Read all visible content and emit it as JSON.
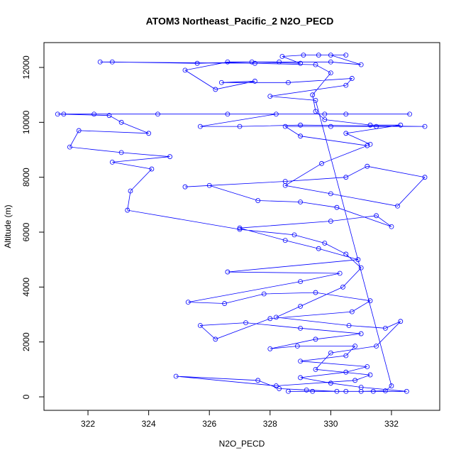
{
  "chart_data": {
    "type": "line",
    "title": "ATOM3 Northeast_Pacific_2 N2O_PECD",
    "xlabel": "N2O_PECD",
    "ylabel": "Altitude (m)",
    "color": "#0000ff",
    "xlim": [
      320.55,
      333.59
    ],
    "ylim": [
      -491,
      12905
    ],
    "xticks": [
      322,
      324,
      326,
      328,
      330,
      332
    ],
    "yticks": [
      0,
      2000,
      4000,
      6000,
      8000,
      10000,
      12000
    ],
    "x": [
      328.6,
      329.4,
      330.5,
      331.4,
      332.5,
      331,
      330,
      329,
      330.5,
      331.2,
      329,
      330.5,
      330.8,
      328.9,
      328,
      329.5,
      331,
      329,
      327.2,
      325.7,
      326.2,
      328,
      330.7,
      331.3,
      329.5,
      327.8,
      326.5,
      325.3,
      329,
      330.3,
      326.6,
      330.9,
      329.6,
      328.5,
      327,
      330,
      331.5,
      332,
      330.2,
      329,
      327.6,
      326,
      325.2,
      328.5,
      330.5,
      331.2,
      333.1,
      332.2,
      330,
      328.5,
      329.7,
      331.2,
      329,
      328.5,
      330,
      331.5,
      333.1,
      329,
      327,
      325.7,
      328.2,
      329.8,
      332.6,
      330.5,
      326.6,
      324.3,
      322.2,
      321.2,
      321,
      322.7,
      323.1,
      324,
      321.7,
      321.4,
      323.1,
      324.7,
      322.8,
      324.1,
      323.4,
      323.3,
      327,
      328.8,
      329.8,
      330.5,
      331,
      330.4,
      329,
      328.2,
      330.6,
      331.8,
      332.3,
      331.5,
      330,
      329.5,
      331.3,
      330.8,
      328.2,
      324.9,
      327.6,
      328.3,
      329.2,
      330.2,
      331,
      331.8,
      332,
      329.5,
      328,
      330.5,
      330.7,
      328.6,
      326.4,
      327.5,
      326.2,
      325.2,
      326.6,
      328.3,
      330,
      331,
      330,
      329.6,
      330.5,
      329.1,
      328.4,
      329,
      327.4,
      325.6,
      322.8,
      322.4,
      327.5,
      329.5,
      330,
      329.4,
      329.5,
      329.8,
      331.3,
      332.3,
      330.5,
      331.3
    ],
    "y": [
      200,
      200,
      200,
      200,
      200,
      350,
      500,
      700,
      900,
      1100,
      1300,
      1500,
      1850,
      1850,
      1750,
      2100,
      2300,
      2500,
      2700,
      2600,
      2100,
      2850,
      3100,
      3500,
      3800,
      3750,
      3400,
      3450,
      4200,
      4500,
      4550,
      5000,
      5400,
      5700,
      6150,
      6400,
      6600,
      6200,
      6900,
      7100,
      7150,
      7700,
      7650,
      7850,
      8000,
      8400,
      8000,
      6950,
      7400,
      7700,
      8500,
      9150,
      9500,
      9850,
      9850,
      9850,
      9850,
      9900,
      9850,
      9850,
      10300,
      10300,
      10300,
      10300,
      10300,
      10300,
      10300,
      10300,
      10300,
      10250,
      10000,
      9600,
      9700,
      9100,
      8900,
      8750,
      8550,
      8300,
      7500,
      6800,
      6100,
      5900,
      5600,
      5200,
      4700,
      4000,
      3300,
      2900,
      2600,
      2500,
      2750,
      1850,
      1600,
      1000,
      800,
      600,
      400,
      750,
      600,
      300,
      250,
      200,
      200,
      220,
      400,
      10800,
      10950,
      11350,
      11600,
      11450,
      11450,
      11500,
      11200,
      11900,
      12200,
      12200,
      12200,
      12100,
      12450,
      12450,
      12450,
      12450,
      12400,
      12150,
      12200,
      12150,
      12200,
      12200,
      12150,
      12100,
      11800,
      11000,
      10400,
      10100,
      9900,
      9900,
      9600,
      9200
    ]
  }
}
